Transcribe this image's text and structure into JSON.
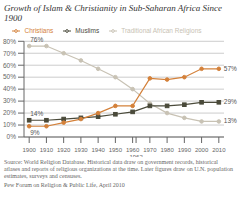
{
  "chart_data": {
    "type": "line",
    "title": "Growth of Islam & Christianity in Sub-Saharan Africa Since 1900",
    "x": [
      1900,
      1910,
      1920,
      1930,
      1940,
      1950,
      1960,
      1970,
      1980,
      1990,
      2000,
      2010
    ],
    "xlim": [
      1897,
      2013
    ],
    "xticks": [
      1900,
      1910,
      1920,
      1930,
      1940,
      1950,
      1960,
      1962,
      1970,
      1980,
      1990,
      2000,
      2010
    ],
    "ylim": [
      0,
      80
    ],
    "yticks": [
      {
        "value": 0,
        "label": "0%"
      },
      {
        "value": 10,
        "label": "10%"
      },
      {
        "value": 20,
        "label": "20%"
      },
      {
        "value": 30,
        "label": "30%"
      },
      {
        "value": 40,
        "label": "40%"
      },
      {
        "value": 50,
        "label": "50%"
      },
      {
        "value": 60,
        "label": "60%"
      },
      {
        "value": 70,
        "label": "70%"
      },
      {
        "value": 80,
        "label": "80%"
      }
    ],
    "grid": "y",
    "legend": "top",
    "series": [
      {
        "name": "Traditional African Religions",
        "color": "#c8c2b4",
        "marker": "circle",
        "values": [
          76,
          76,
          70,
          64,
          57,
          50,
          40,
          28,
          20,
          16,
          13,
          13
        ]
      },
      {
        "name": "Muslims",
        "color": "#4a4a3a",
        "marker": "square",
        "values": [
          14,
          14,
          15,
          16,
          17,
          19,
          21,
          26,
          26,
          27,
          29,
          29
        ]
      },
      {
        "name": "Christians",
        "color": "#d4813a",
        "marker": "circle",
        "values": [
          9,
          9,
          12,
          15,
          20,
          26,
          26,
          49,
          48,
          50,
          57,
          57
        ]
      }
    ],
    "annotations": [
      {
        "text": "76%",
        "x": 1900,
        "y": 76
      },
      {
        "text": "14%",
        "x": 1900,
        "y": 14
      },
      {
        "text": "9%",
        "x": 1900,
        "y": 9
      },
      {
        "text": "57%",
        "x": 2010,
        "y": 57
      },
      {
        "text": "29%",
        "x": 2010,
        "y": 29
      },
      {
        "text": "13%",
        "x": 2010,
        "y": 13
      }
    ],
    "source": [
      "Source: World Religion Database. Historical data draw on government records, historical",
      "atlases and reports of religious organizations at the time. Later figures draw on U.N. population",
      "estimates, surveys and censuses.",
      "Pew Forum on Religion & Public Life, April 2010"
    ]
  }
}
